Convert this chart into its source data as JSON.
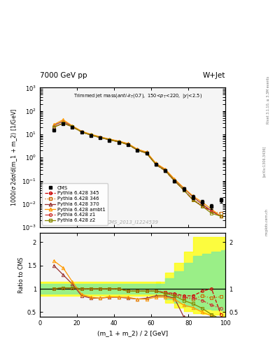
{
  "title_top": "7000 GeV pp",
  "title_right": "W+Jet",
  "watermark": "CMS_2013_I1224539",
  "xlabel": "(m_1 + m_2) / 2 [GeV]",
  "ylabel_main": "1000/σ 2dσ/d(m_1 + m_2) [1/GeV]",
  "ylabel_ratio": "Ratio to CMS",
  "xlim": [
    0,
    100
  ],
  "ylim_main_lo": 0.001,
  "ylim_main_hi": 1000,
  "ylim_ratio_lo": 0.4,
  "ylim_ratio_hi": 2.2,
  "x_data": [
    7.5,
    12.5,
    17.5,
    22.5,
    27.5,
    32.5,
    37.5,
    42.5,
    47.5,
    52.5,
    57.5,
    62.5,
    67.5,
    72.5,
    77.5,
    82.5,
    87.5,
    92.5,
    97.5
  ],
  "cms_y": [
    15.0,
    28.0,
    20.0,
    12.5,
    9.0,
    7.0,
    5.5,
    4.5,
    3.5,
    2.1,
    1.5,
    0.5,
    0.28,
    0.1,
    0.045,
    0.02,
    0.012,
    0.008,
    0.015
  ],
  "cms_yerr": [
    1.5,
    2.0,
    1.5,
    1.0,
    0.7,
    0.5,
    0.4,
    0.35,
    0.3,
    0.2,
    0.15,
    0.06,
    0.04,
    0.015,
    0.008,
    0.004,
    0.003,
    0.002,
    0.004
  ],
  "p345_y": [
    20.0,
    30.0,
    21.0,
    12.5,
    9.2,
    7.2,
    5.8,
    4.7,
    3.6,
    2.1,
    1.52,
    0.5,
    0.27,
    0.1,
    0.04,
    0.015,
    0.008,
    0.005,
    0.003
  ],
  "p346_y": [
    20.0,
    30.0,
    21.0,
    12.5,
    9.2,
    7.2,
    5.8,
    4.7,
    3.6,
    2.1,
    1.52,
    0.5,
    0.27,
    0.1,
    0.04,
    0.016,
    0.009,
    0.005,
    0.004
  ],
  "p370_y": [
    24.0,
    36.0,
    22.0,
    13.0,
    9.5,
    7.5,
    6.0,
    5.0,
    3.8,
    2.2,
    1.62,
    0.55,
    0.3,
    0.11,
    0.048,
    0.02,
    0.01,
    0.005,
    0.003
  ],
  "pambt1_y": [
    26.0,
    42.0,
    23.0,
    13.5,
    10.0,
    7.8,
    6.2,
    5.1,
    4.0,
    2.3,
    1.72,
    0.57,
    0.32,
    0.12,
    0.05,
    0.022,
    0.012,
    0.006,
    0.003
  ],
  "pz1_y": [
    20.0,
    30.0,
    21.0,
    12.5,
    9.2,
    7.2,
    5.8,
    4.7,
    3.6,
    2.1,
    1.52,
    0.5,
    0.27,
    0.1,
    0.04,
    0.015,
    0.008,
    0.005,
    0.003
  ],
  "pz2_y": [
    20.0,
    30.0,
    21.0,
    12.5,
    9.2,
    7.2,
    5.8,
    4.7,
    3.6,
    2.1,
    1.52,
    0.5,
    0.27,
    0.1,
    0.04,
    0.015,
    0.008,
    0.004,
    0.003
  ],
  "ratio_p345": [
    1.0,
    1.02,
    1.02,
    1.0,
    1.0,
    1.0,
    1.0,
    1.0,
    0.95,
    0.95,
    0.95,
    0.95,
    0.92,
    0.9,
    0.85,
    0.85,
    0.95,
    1.0,
    0.45
  ],
  "ratio_p346": [
    1.0,
    1.02,
    1.02,
    1.0,
    1.0,
    1.0,
    1.0,
    1.0,
    0.95,
    0.95,
    0.95,
    0.95,
    0.92,
    0.85,
    0.8,
    0.78,
    0.85,
    0.8,
    0.83
  ],
  "ratio_p370": [
    1.5,
    1.3,
    1.1,
    0.85,
    0.8,
    0.8,
    0.82,
    0.82,
    0.8,
    0.78,
    0.8,
    0.85,
    0.85,
    0.8,
    0.4,
    0.35,
    0.3,
    0.27,
    0.25
  ],
  "ratio_pambt1": [
    1.6,
    1.45,
    1.15,
    0.88,
    0.82,
    0.8,
    0.83,
    0.82,
    0.82,
    0.78,
    0.78,
    0.82,
    0.82,
    0.78,
    0.65,
    0.6,
    0.5,
    0.42,
    0.35
  ],
  "ratio_pz1": [
    1.0,
    1.02,
    1.02,
    1.0,
    1.0,
    1.0,
    1.0,
    1.0,
    0.95,
    0.95,
    0.95,
    0.95,
    0.92,
    0.88,
    0.82,
    0.8,
    0.75,
    0.65,
    0.58
  ],
  "ratio_pz2": [
    1.0,
    1.02,
    1.02,
    1.0,
    1.0,
    1.0,
    1.0,
    1.0,
    0.95,
    0.95,
    0.95,
    0.95,
    0.9,
    0.85,
    0.75,
    0.68,
    0.58,
    0.45,
    0.35
  ],
  "color_cms": "#000000",
  "color_345": "#cc0000",
  "color_346": "#cc6600",
  "color_370": "#993333",
  "color_ambt1": "#ff9900",
  "color_z1": "#cc3333",
  "color_z2": "#888800",
  "bg_color": "#f5f5f5",
  "band_narrow_lo": 0.85,
  "band_narrow_hi": 1.15,
  "band_narrow_inner_lo": 0.9,
  "band_narrow_inner_hi": 1.1,
  "band_wide_x": [
    62.5,
    67.5,
    72.5,
    77.5,
    82.5,
    87.5,
    92.5,
    97.5,
    100.0
  ],
  "band_wide_lo": [
    0.85,
    0.7,
    0.6,
    0.52,
    0.47,
    0.46,
    0.44,
    0.42,
    0.4
  ],
  "band_wide_hi": [
    1.15,
    1.35,
    1.55,
    1.8,
    2.1,
    2.1,
    2.1,
    2.1,
    2.1
  ],
  "band_wide_inner_lo": [
    0.9,
    0.78,
    0.7,
    0.62,
    0.57,
    0.56,
    0.55,
    0.54,
    0.53
  ],
  "band_wide_inner_hi": [
    1.1,
    1.22,
    1.38,
    1.55,
    1.7,
    1.75,
    1.8,
    1.82,
    1.85
  ]
}
